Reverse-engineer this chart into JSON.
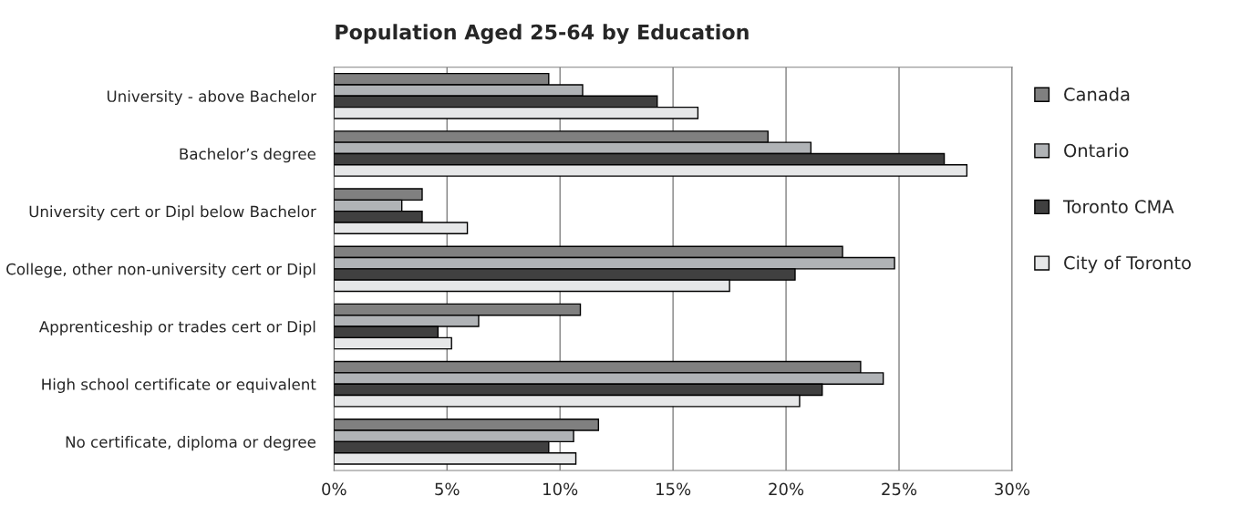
{
  "chart_data": {
    "type": "bar",
    "orientation": "horizontal",
    "title": "Population Aged 25-64 by Education",
    "categories": [
      "University - above Bachelor",
      "Bachelor’s degree",
      "University cert or Dipl below Bachelor",
      "College, other non-university cert or Dipl",
      "Apprenticeship or trades cert or Dipl",
      "High school certificate or equivalent",
      "No certificate, diploma or degree"
    ],
    "series": [
      {
        "name": "Canada",
        "color": "#808080",
        "values": [
          9.5,
          19.2,
          3.9,
          22.5,
          10.9,
          23.3,
          11.7
        ]
      },
      {
        "name": "Ontario",
        "color": "#b0b3b6",
        "values": [
          11.0,
          21.1,
          3.0,
          24.8,
          6.4,
          24.3,
          10.6
        ]
      },
      {
        "name": "Toronto CMA",
        "color": "#404040",
        "values": [
          14.3,
          27.0,
          3.9,
          20.4,
          4.6,
          21.6,
          9.5
        ]
      },
      {
        "name": "City of Toronto",
        "color": "#e6e7e8",
        "values": [
          16.1,
          28.0,
          5.9,
          17.5,
          5.2,
          20.6,
          10.7
        ]
      }
    ],
    "xlim": [
      0,
      30
    ],
    "xticks": [
      {
        "value": 0,
        "label": "0%"
      },
      {
        "value": 5,
        "label": "5%"
      },
      {
        "value": 10,
        "label": "10%"
      },
      {
        "value": 15,
        "label": "15%"
      },
      {
        "value": 20,
        "label": "20%"
      },
      {
        "value": 25,
        "label": "25%"
      },
      {
        "value": 30,
        "label": "30%"
      }
    ],
    "grid": "x",
    "legend": "right"
  }
}
